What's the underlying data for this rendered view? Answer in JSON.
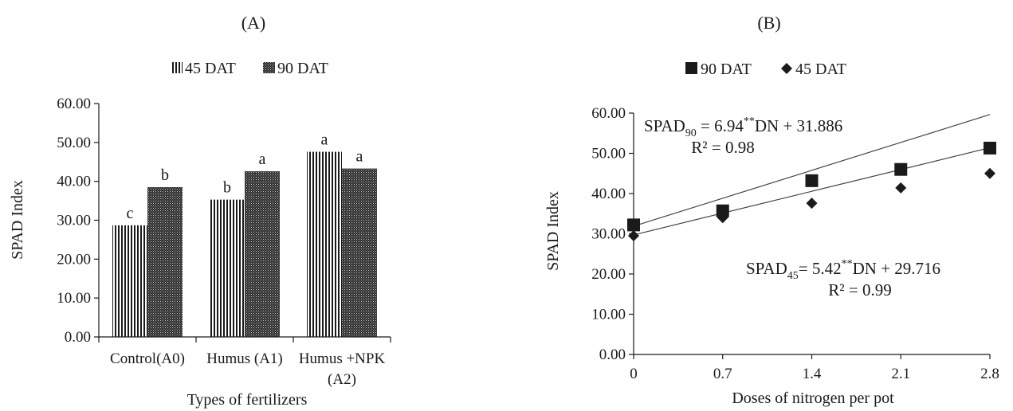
{
  "chart_data": [
    {
      "panel_label": "(A)",
      "type": "bar",
      "xlabel": "Types of fertilizers",
      "ylabel": "SPAD Index",
      "ylim": [
        0,
        60
      ],
      "yticks": [
        "0.00",
        "10.00",
        "20.00",
        "30.00",
        "40.00",
        "50.00",
        "60.00"
      ],
      "categories": [
        {
          "label": "Control(A0)",
          "lines": [
            "Control(A0)"
          ]
        },
        {
          "label": "Humus (A1)",
          "lines": [
            "Humus (A1)"
          ]
        },
        {
          "label": "Humus +NPK (A2)",
          "lines": [
            "Humus +NPK",
            "(A2)"
          ]
        }
      ],
      "series": [
        {
          "name": "45 DAT",
          "pattern": "vertical-stripes",
          "values": [
            28.7,
            35.3,
            47.6
          ],
          "letters": [
            "c",
            "b",
            "a"
          ]
        },
        {
          "name": "90 DAT",
          "pattern": "dark-dotted",
          "values": [
            38.5,
            42.6,
            43.3
          ],
          "letters": [
            "b",
            "a",
            "a"
          ]
        }
      ],
      "legend": {
        "position": "top"
      }
    },
    {
      "panel_label": "(B)",
      "type": "scatter",
      "xlabel": "Doses of nitrogen per pot",
      "ylabel": "SPAD Index",
      "ylim": [
        0,
        60
      ],
      "yticks": [
        "0.00",
        "10.00",
        "20.00",
        "30.00",
        "40.00",
        "50.00",
        "60.00"
      ],
      "x": [
        0,
        0.7,
        1.4,
        2.1,
        2.8
      ],
      "xticks": [
        "0",
        "0.7",
        "1.4",
        "2.1",
        "2.8"
      ],
      "series": [
        {
          "name": "90 DAT",
          "marker": "square",
          "values": [
            32.2,
            35.7,
            43.2,
            46.0,
            51.3
          ],
          "trend": {
            "slope": 6.94,
            "intercept": 31.886
          },
          "equation": {
            "lead": "SPAD",
            "sub": "90",
            "mid": " = 6.94",
            "sup": "**",
            "tail": "DN + 31.886"
          },
          "r2": "R² = 0.98"
        },
        {
          "name": "45 DAT",
          "marker": "diamond",
          "values": [
            29.5,
            34.0,
            37.6,
            41.4,
            45.0
          ],
          "trend": {
            "slope": 5.42,
            "intercept": 29.716
          },
          "equation": {
            "lead": "SPAD",
            "sub": "45",
            "mid": "= 5.42",
            "sup": "**",
            "tail": "DN + 29.716"
          },
          "r2": "R² = 0.99"
        }
      ],
      "legend": {
        "position": "top"
      }
    }
  ]
}
